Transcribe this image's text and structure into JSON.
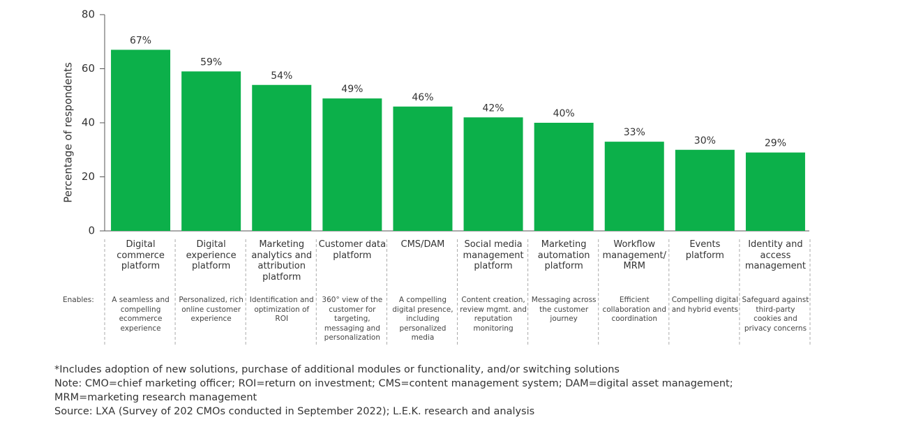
{
  "chart_data": {
    "type": "bar",
    "y_label": "Percentage of respondents",
    "categories": [
      "Digital commerce platform",
      "Digital experience platform",
      "Marketing analytics and attribution platform",
      "Customer data platform",
      "CMS/DAM",
      "Social media management platform",
      "Marketing automation platform",
      "Workflow management/ MRM",
      "Events platform",
      "Identity and access management"
    ],
    "values": [
      67,
      59,
      54,
      49,
      46,
      42,
      40,
      33,
      30,
      29
    ],
    "value_labels": [
      "67%",
      "59%",
      "54%",
      "49%",
      "46%",
      "42%",
      "40%",
      "33%",
      "30%",
      "29%"
    ],
    "color": "#0cb04a",
    "ylim": [
      0,
      80
    ],
    "yticks": [
      0,
      20,
      40,
      60,
      80
    ],
    "grid": false,
    "enables_label": "Enables:",
    "enables": [
      "A seamless and compelling ecommerce experience",
      "Personalized, rich online customer experience",
      "Identification and optimization of ROI",
      "360° view of the customer for targeting, messaging and personalization",
      "A compelling digital presence, including personalized media",
      "Content creation, review mgmt. and reputation monitoring",
      "Messaging across the customer journey",
      "Efficient collaboration and coordination",
      "Compelling digital and hybrid events",
      "Safeguard against third-party cookies and privacy concerns"
    ],
    "notes": [
      "*Includes adoption of new solutions, purchase of additional modules or functionality, and/or switching solutions",
      "Note: CMO=chief marketing officer; ROI=return on investment; CMS=content management system; DAM=digital asset management; MRM=marketing research management",
      "Source: LXA (Survey of 202 CMOs conducted in September 2022); L.E.K. research and analysis"
    ]
  }
}
